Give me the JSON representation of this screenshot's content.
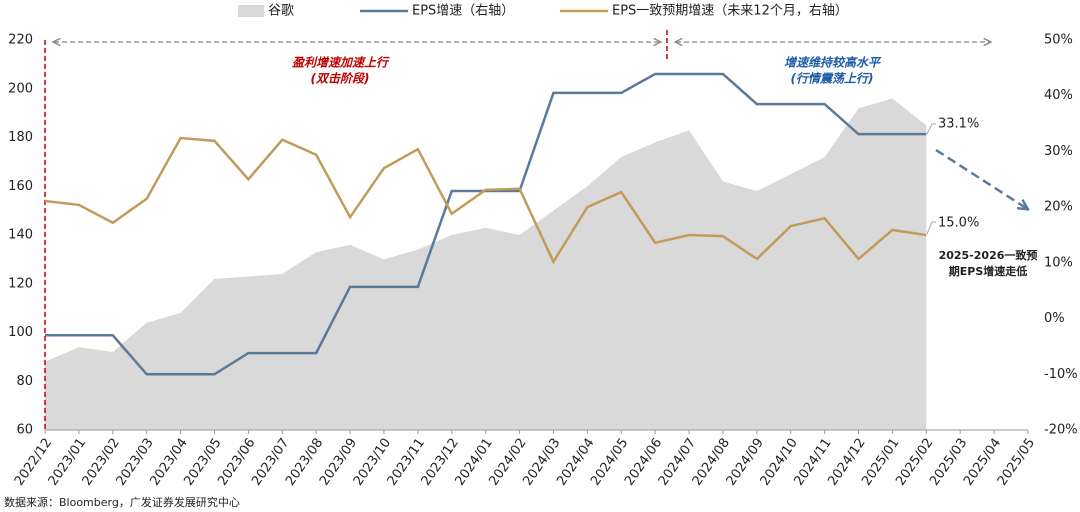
{
  "chart_data": {
    "type": "combo",
    "categories": [
      "2022/12",
      "2023/01",
      "2023/02",
      "2023/03",
      "2023/04",
      "2023/05",
      "2023/06",
      "2023/07",
      "2023/08",
      "2023/09",
      "2023/10",
      "2023/11",
      "2023/12",
      "2024/01",
      "2024/02",
      "2024/03",
      "2024/04",
      "2024/05",
      "2024/06",
      "2024/07",
      "2024/08",
      "2024/09",
      "2024/10",
      "2024/11",
      "2024/12",
      "2025/01",
      "2025/02",
      "2025/03",
      "2025/04",
      "2025/05"
    ],
    "series": [
      {
        "name": "谷歌",
        "type": "area",
        "axis": "y",
        "color": "#d9d9d9",
        "values": [
          88,
          94,
          92,
          104,
          108,
          122,
          123,
          124,
          133,
          136,
          130,
          134,
          140,
          143,
          140,
          150,
          160,
          172,
          178,
          183,
          162,
          158,
          165,
          172,
          192,
          196,
          185,
          null,
          null,
          null
        ]
      },
      {
        "name": "EPS增速（右轴）",
        "type": "line",
        "axis": "y2",
        "color": "#5b7a99",
        "values": [
          -3,
          -3,
          -3,
          -10,
          -10,
          -10,
          -6.2,
          -6.2,
          -6.2,
          5.7,
          5.7,
          5.7,
          22.9,
          22.9,
          22.9,
          40.5,
          40.5,
          40.5,
          43.9,
          43.9,
          43.9,
          38.5,
          38.5,
          38.5,
          33.1,
          33.1,
          33.1,
          null,
          null,
          null
        ]
      },
      {
        "name": "EPS一致预期增速（未来12个月，右轴）",
        "type": "line",
        "axis": "y2",
        "color": "#c49a5a",
        "values": [
          21.1,
          20.4,
          17.2,
          21.5,
          32.4,
          31.9,
          25.0,
          32.1,
          29.4,
          18.2,
          27.0,
          30.4,
          18.8,
          23.1,
          23.3,
          10.2,
          20.0,
          22.7,
          13.6,
          15.0,
          14.8,
          10.7,
          16.6,
          18.0,
          10.7,
          15.9,
          15.0,
          null,
          null,
          null
        ]
      }
    ],
    "ylim": [
      60,
      220
    ],
    "yticks": [
      60,
      80,
      100,
      120,
      140,
      160,
      180,
      200,
      220
    ],
    "y2lim": [
      -20,
      50
    ],
    "y2ticks": [
      {
        "value": -20,
        "label": "-20%"
      },
      {
        "value": -10,
        "label": "-10%"
      },
      {
        "value": 0,
        "label": "0%"
      },
      {
        "value": 10,
        "label": "10%"
      },
      {
        "value": 20,
        "label": "20%"
      },
      {
        "value": 30,
        "label": "30%"
      },
      {
        "value": 40,
        "label": "40%"
      },
      {
        "value": 50,
        "label": "50%"
      }
    ],
    "annotations": [
      "盈利增速加速上行",
      "(双击阶段)",
      "增速维持较高水平",
      "(行情震荡上行)",
      "33.1%",
      "15.0%",
      "2025-2026一致预",
      "期EPS增速走低"
    ],
    "source": "数据来源：Bloomberg，广发证券发展研究中心"
  }
}
